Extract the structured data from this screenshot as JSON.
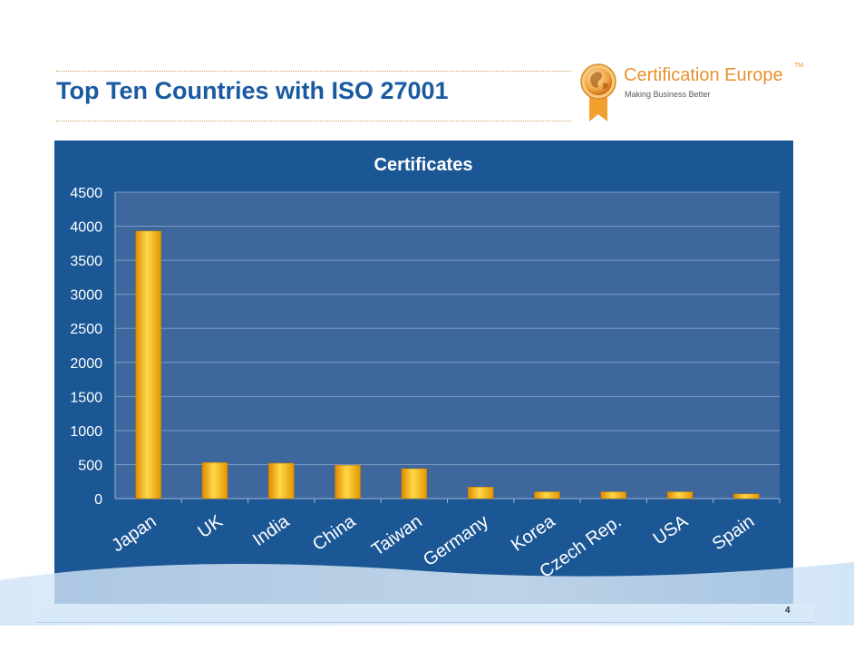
{
  "slide": {
    "title": "Top Ten Countries with ISO 27001",
    "page_number": "4"
  },
  "logo": {
    "name": "Certification Europe",
    "trademark": "TM",
    "tagline": "Making Business Better"
  },
  "colors": {
    "title": "#1a5aa0",
    "panel": "#1c5795",
    "plot_area": "#3d679d",
    "bar": "#ffc000",
    "logo_orange": "#e8922e"
  },
  "chart_data": {
    "type": "bar",
    "title": "Certificates",
    "categories": [
      "Japan",
      "UK",
      "India",
      "China",
      "Taiwan",
      "Germany",
      "Korea",
      "Czech Rep.",
      "USA",
      "Spain"
    ],
    "values": [
      3930,
      530,
      520,
      490,
      440,
      170,
      100,
      100,
      100,
      70
    ],
    "ylim": [
      0,
      4500
    ],
    "yticks": [
      0,
      500,
      1000,
      1500,
      2000,
      2500,
      3000,
      3500,
      4000,
      4500
    ],
    "grid": true,
    "legend": "none"
  }
}
